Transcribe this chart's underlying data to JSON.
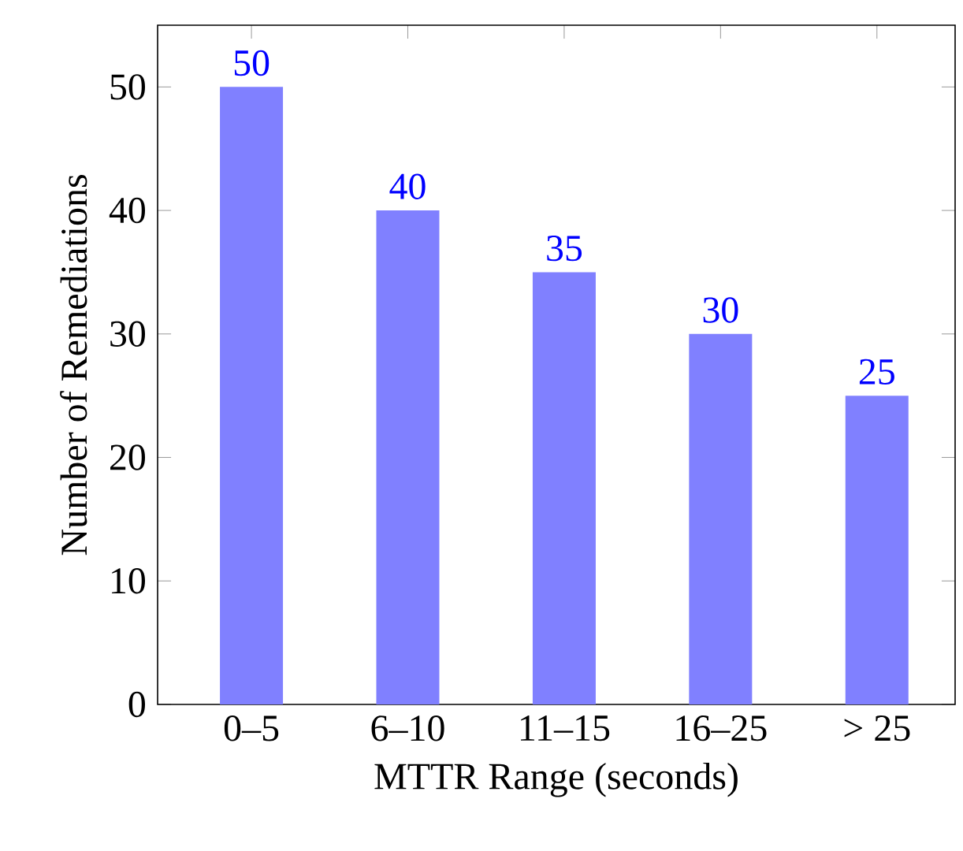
{
  "chart_data": {
    "type": "bar",
    "xlabel": "MTTR Range (seconds)",
    "ylabel": "Number of Remediations",
    "categories": [
      "0–5",
      "6–10",
      "11–15",
      "16–25",
      "> 25"
    ],
    "values": [
      50,
      40,
      35,
      30,
      25
    ],
    "color": "#8080ff",
    "ylim": [
      0,
      55
    ],
    "yticks": [
      0,
      10,
      20,
      30,
      40,
      50
    ],
    "data_labels": true
  }
}
